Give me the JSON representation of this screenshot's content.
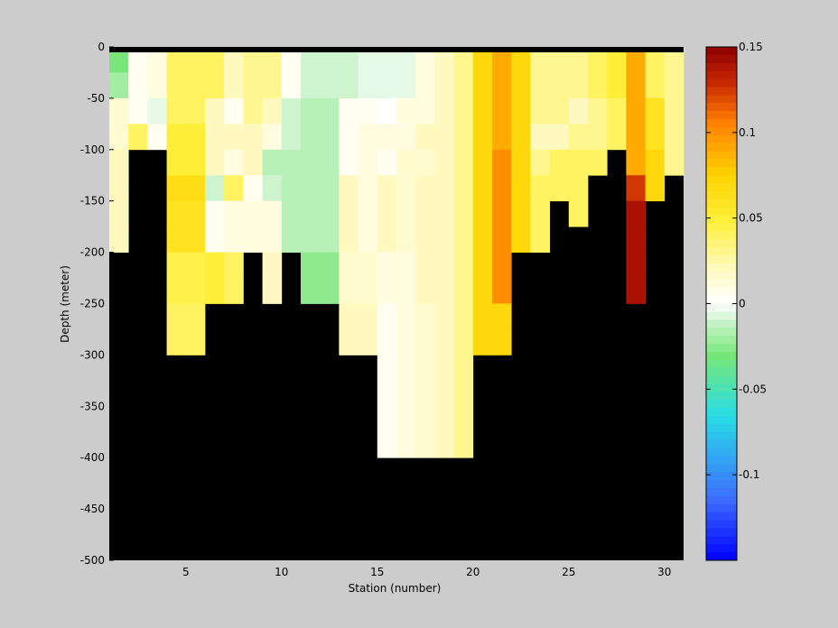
{
  "chart_data": {
    "type": "heatmap",
    "title": "",
    "xlabel": "Station (number)",
    "ylabel": "Depth (meter)",
    "xlim": [
      1,
      31
    ],
    "ylim": [
      -500,
      0
    ],
    "x_ticks": [
      5,
      10,
      15,
      20,
      25,
      30
    ],
    "y_ticks": [
      0,
      -50,
      -100,
      -150,
      -200,
      -250,
      -300,
      -350,
      -400,
      -450,
      -500
    ],
    "grid": false,
    "colormap": "jet-with-white-center",
    "background_color": "#000000",
    "colorbar": {
      "location": "right",
      "range": [
        -0.15,
        0.15
      ],
      "ticks": [
        0.15,
        0.1,
        0.05,
        0,
        -0.05,
        -0.1
      ],
      "tick_labels": [
        "0.15",
        "0.1",
        "0.05",
        "0",
        "-0.05",
        "-0.1"
      ]
    },
    "stations": [
      1,
      2,
      3,
      4,
      5,
      6,
      7,
      8,
      9,
      10,
      11,
      12,
      13,
      14,
      15,
      16,
      17,
      18,
      19,
      20,
      21,
      22,
      23,
      24,
      25,
      26,
      27,
      28,
      29,
      30
    ],
    "depth_bins": [
      [
        0,
        -25
      ],
      [
        -25,
        -50
      ],
      [
        -50,
        -75
      ],
      [
        -75,
        -100
      ],
      [
        -100,
        -125
      ],
      [
        -125,
        -150
      ],
      [
        -150,
        -175
      ],
      [
        -175,
        -200
      ],
      [
        -200,
        -225
      ],
      [
        -225,
        -250
      ],
      [
        -250,
        -275
      ],
      [
        -275,
        -300
      ],
      [
        -300,
        -400
      ]
    ],
    "z": [
      [
        -0.03,
        0.005,
        0.01,
        0.04,
        0.04,
        0.04,
        0.02,
        0.03,
        0.03,
        0.005,
        -0.01,
        -0.01,
        -0.01,
        -0.005,
        -0.005,
        -0.005,
        0.01,
        0.02,
        0.03,
        0.07,
        0.09,
        0.07,
        0.03,
        0.03,
        0.03,
        0.04,
        0.05,
        0.09,
        0.04,
        0.03
      ],
      [
        -0.02,
        0.005,
        0.01,
        0.04,
        0.04,
        0.04,
        0.02,
        0.03,
        0.03,
        0.005,
        -0.01,
        -0.01,
        -0.01,
        -0.005,
        -0.005,
        -0.005,
        0.01,
        0.02,
        0.03,
        0.07,
        0.09,
        0.07,
        0.03,
        0.03,
        0.03,
        0.04,
        0.05,
        0.09,
        0.04,
        0.03
      ],
      [
        0.015,
        0.005,
        -0.005,
        0.04,
        0.04,
        0.02,
        0.005,
        0.03,
        0.02,
        -0.01,
        -0.015,
        -0.015,
        0.005,
        0.005,
        0.0,
        0.01,
        0.01,
        0.02,
        0.03,
        0.07,
        0.09,
        0.07,
        0.03,
        0.03,
        0.02,
        0.03,
        0.04,
        0.09,
        0.06,
        0.03
      ],
      [
        0.015,
        0.04,
        0.005,
        0.05,
        0.05,
        0.02,
        0.02,
        0.02,
        0.01,
        -0.01,
        -0.015,
        -0.015,
        0.005,
        0.01,
        0.01,
        0.01,
        0.02,
        0.02,
        0.03,
        0.07,
        0.09,
        0.07,
        0.02,
        0.02,
        0.03,
        0.03,
        0.04,
        0.09,
        0.06,
        0.03
      ],
      [
        0.02,
        null,
        null,
        0.05,
        0.05,
        0.02,
        0.01,
        0.02,
        -0.015,
        -0.015,
        -0.015,
        -0.015,
        0.005,
        0.01,
        0.005,
        0.015,
        0.015,
        0.02,
        0.03,
        0.07,
        0.1,
        0.07,
        0.03,
        0.04,
        0.04,
        0.04,
        null,
        0.09,
        0.07,
        0.03
      ],
      [
        0.02,
        null,
        null,
        0.065,
        0.065,
        -0.01,
        0.04,
        0.005,
        -0.01,
        -0.015,
        -0.015,
        -0.015,
        0.02,
        0.01,
        0.02,
        0.015,
        0.02,
        0.02,
        0.03,
        0.07,
        0.1,
        0.07,
        0.04,
        0.04,
        0.04,
        null,
        null,
        0.125,
        0.07,
        null
      ],
      [
        0.02,
        null,
        null,
        0.06,
        0.06,
        0.005,
        0.01,
        0.01,
        0.01,
        -0.015,
        -0.015,
        -0.015,
        0.02,
        0.01,
        0.02,
        0.015,
        0.02,
        0.02,
        0.03,
        0.07,
        0.1,
        0.07,
        0.04,
        null,
        0.04,
        null,
        null,
        0.14,
        null,
        null
      ],
      [
        0.02,
        null,
        null,
        0.06,
        0.06,
        0.005,
        0.01,
        0.01,
        0.01,
        -0.015,
        -0.015,
        -0.015,
        0.02,
        0.01,
        0.02,
        0.015,
        0.02,
        0.02,
        0.03,
        0.07,
        0.1,
        0.07,
        0.04,
        null,
        null,
        null,
        null,
        0.14,
        null,
        null
      ],
      [
        null,
        null,
        null,
        0.045,
        0.045,
        0.05,
        0.04,
        null,
        0.02,
        null,
        -0.025,
        -0.025,
        0.015,
        0.015,
        0.01,
        0.01,
        0.02,
        0.02,
        0.03,
        0.07,
        0.1,
        null,
        null,
        null,
        null,
        null,
        null,
        0.14,
        null,
        null
      ],
      [
        null,
        null,
        null,
        0.045,
        0.045,
        0.05,
        0.04,
        null,
        0.02,
        null,
        -0.025,
        -0.025,
        0.015,
        0.015,
        0.01,
        0.01,
        0.02,
        0.02,
        0.03,
        0.07,
        0.1,
        null,
        null,
        null,
        null,
        null,
        null,
        0.14,
        null,
        null
      ],
      [
        null,
        null,
        null,
        0.04,
        0.04,
        null,
        null,
        null,
        null,
        null,
        null,
        null,
        0.02,
        0.02,
        0.005,
        0.01,
        0.015,
        0.02,
        0.03,
        0.07,
        0.07,
        null,
        null,
        null,
        null,
        null,
        null,
        null,
        null,
        null
      ],
      [
        null,
        null,
        null,
        0.04,
        0.04,
        null,
        null,
        null,
        null,
        null,
        null,
        null,
        0.02,
        0.02,
        0.005,
        0.01,
        0.015,
        0.02,
        0.03,
        0.07,
        0.07,
        null,
        null,
        null,
        null,
        null,
        null,
        null,
        null,
        null
      ],
      [
        null,
        null,
        null,
        null,
        null,
        null,
        null,
        null,
        null,
        null,
        null,
        null,
        null,
        null,
        0.005,
        0.01,
        0.015,
        0.02,
        0.03,
        null,
        null,
        null,
        null,
        null,
        null,
        null,
        null,
        null,
        null,
        null
      ]
    ]
  }
}
